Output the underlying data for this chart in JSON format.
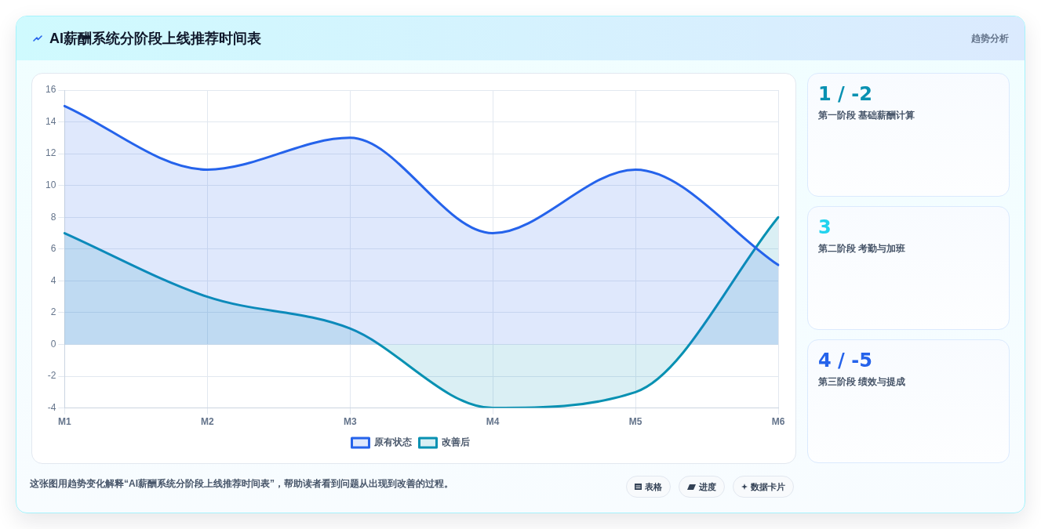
{
  "chart_data": [
    {
      "type": "area",
      "title": "AI薪酬系统分阶段上线推荐时间表",
      "categories": [
        "M1",
        "M2",
        "M3",
        "M4",
        "M5",
        "M6"
      ],
      "series": [
        {
          "name": "原有状态",
          "color": "#2563eb",
          "values": [
            15,
            11,
            13,
            7,
            11,
            5
          ]
        },
        {
          "name": "改善后",
          "color": "#0891b2",
          "values": [
            7,
            3,
            1,
            -4,
            -3,
            8
          ]
        }
      ],
      "ylim": [
        -4,
        16
      ],
      "yticks": [
        -4,
        -2,
        0,
        2,
        4,
        6,
        8,
        10,
        12,
        14,
        16
      ],
      "grid": true,
      "legend": "bottom",
      "annotations": [
        "这张图用趋势变化解释“AI薪酬系统分阶段上线推荐时间表”，帮助读者看到问题从出现到改善的过程。",
        "表格",
        "进度",
        "数据卡片"
      ]
    },
    {
      "type": "other",
      "title": "1 / -2",
      "subtitle": "第一阶段 基础薪酬计算",
      "color": "#0891b2",
      "annotations": [
        "趋势分析"
      ]
    },
    {
      "type": "other",
      "title": "3",
      "subtitle": "第二阶段 考勤与加班",
      "color": "#22d3ee"
    },
    {
      "type": "other",
      "title": "4 / -5",
      "subtitle": "第三阶段 绩效与提成",
      "color": "#2563eb"
    }
  ]
}
